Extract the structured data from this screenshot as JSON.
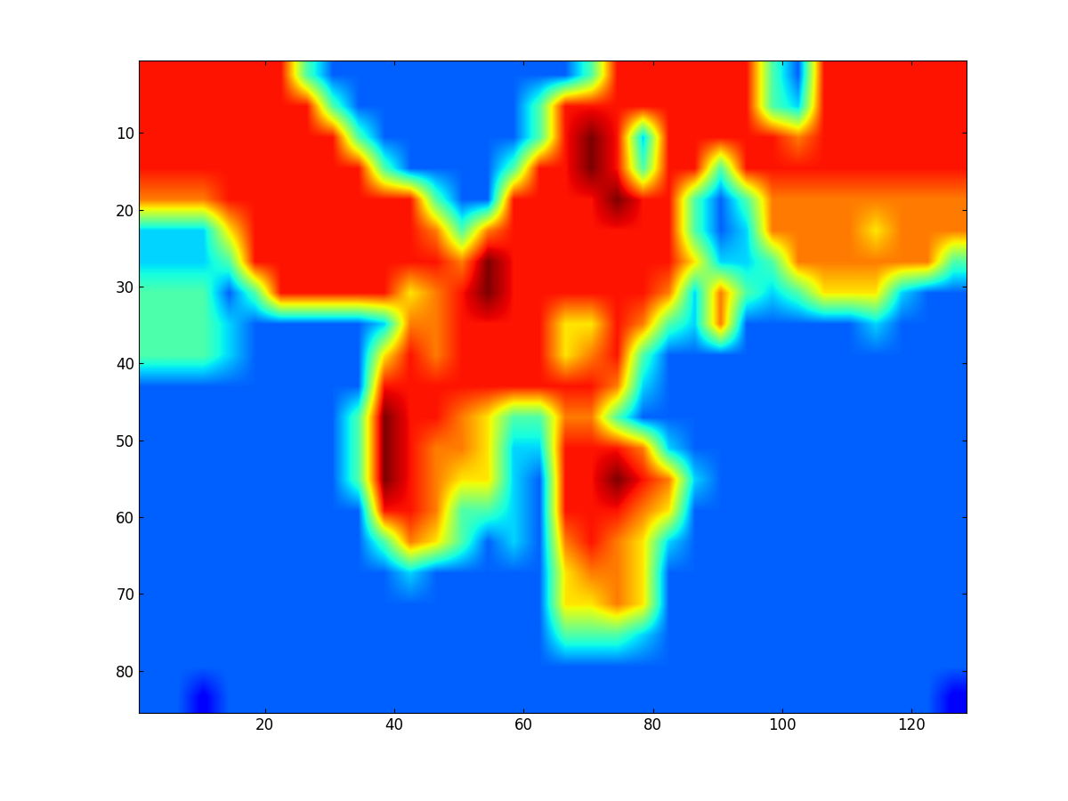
{
  "chart_data": {
    "type": "heatmap",
    "xlim": [
      0.5,
      128.5
    ],
    "ylim": [
      85.5,
      0.5
    ],
    "xticks": [
      20,
      40,
      60,
      80,
      100,
      120
    ],
    "yticks": [
      10,
      20,
      30,
      40,
      50,
      60,
      70,
      80
    ],
    "zlim": [
      0,
      9
    ],
    "cells": [
      [
        8,
        8,
        8,
        8,
        8,
        8,
        4,
        2,
        2,
        2,
        2,
        2,
        2,
        2,
        2,
        2,
        2,
        4,
        8,
        8,
        8,
        8,
        8,
        8,
        4,
        2,
        8,
        8,
        8,
        8,
        8,
        8
      ],
      [
        8,
        8,
        8,
        8,
        8,
        8,
        8,
        4,
        2,
        2,
        2,
        2,
        2,
        2,
        2,
        4,
        8,
        8,
        8,
        8,
        8,
        8,
        8,
        8,
        4,
        3,
        8,
        8,
        8,
        8,
        8,
        8
      ],
      [
        8,
        8,
        8,
        8,
        8,
        8,
        8,
        8,
        4,
        2,
        2,
        2,
        2,
        2,
        2,
        4,
        8,
        9,
        8,
        3,
        8,
        8,
        8,
        8,
        8,
        7,
        8,
        8,
        8,
        8,
        8,
        8
      ],
      [
        8,
        8,
        8,
        8,
        8,
        8,
        8,
        8,
        8,
        4,
        2,
        2,
        2,
        2,
        4,
        8,
        8,
        9,
        8,
        4,
        8,
        8,
        4,
        8,
        8,
        8,
        8,
        8,
        8,
        8,
        8,
        8
      ],
      [
        7,
        7,
        7,
        8,
        8,
        8,
        8,
        8,
        8,
        8,
        8,
        4,
        2,
        2,
        8,
        8,
        8,
        8,
        9,
        8,
        8,
        4,
        2,
        4,
        7,
        7,
        7,
        7,
        7,
        7,
        7,
        7
      ],
      [
        3,
        3,
        3,
        6,
        8,
        8,
        8,
        8,
        8,
        8,
        8,
        7,
        4,
        7,
        8,
        8,
        8,
        8,
        8,
        8,
        8,
        4,
        2,
        3,
        7,
        7,
        7,
        7,
        6,
        7,
        7,
        7
      ],
      [
        3,
        3,
        3,
        4,
        8,
        8,
        8,
        8,
        8,
        8,
        8,
        8,
        7,
        9,
        8,
        8,
        8,
        8,
        8,
        8,
        8,
        6,
        3,
        3,
        4,
        7,
        7,
        7,
        7,
        7,
        7,
        4
      ],
      [
        4,
        4,
        4,
        2,
        4,
        8,
        8,
        8,
        8,
        8,
        6,
        7,
        8,
        9,
        8,
        8,
        8,
        8,
        8,
        8,
        7,
        3,
        7,
        4,
        3,
        4,
        6,
        6,
        6,
        3,
        2,
        2
      ],
      [
        4,
        4,
        4,
        3,
        2,
        2,
        2,
        2,
        2,
        3,
        7,
        7,
        8,
        8,
        8,
        8,
        6,
        6,
        8,
        7,
        4,
        3,
        7,
        2,
        2,
        2,
        2,
        2,
        3,
        2,
        2,
        2
      ],
      [
        4,
        4,
        4,
        3,
        2,
        2,
        2,
        2,
        2,
        6,
        8,
        7,
        8,
        8,
        8,
        8,
        6,
        7,
        8,
        4,
        2,
        2,
        2,
        2,
        2,
        2,
        2,
        2,
        2,
        2,
        2,
        2
      ],
      [
        2,
        2,
        2,
        2,
        2,
        2,
        2,
        2,
        2,
        8,
        8,
        8,
        8,
        8,
        8,
        8,
        8,
        8,
        7,
        3,
        2,
        2,
        2,
        2,
        2,
        2,
        2,
        2,
        2,
        2,
        2,
        2
      ],
      [
        2,
        2,
        2,
        2,
        2,
        2,
        2,
        2,
        4,
        9,
        8,
        8,
        7,
        6,
        4,
        4,
        7,
        7,
        4,
        2,
        2,
        2,
        2,
        2,
        2,
        2,
        2,
        2,
        2,
        2,
        2,
        2
      ],
      [
        2,
        2,
        2,
        2,
        2,
        2,
        2,
        2,
        4,
        9,
        8,
        7,
        7,
        6,
        3,
        3,
        8,
        8,
        8,
        7,
        3,
        2,
        2,
        2,
        2,
        2,
        2,
        2,
        2,
        2,
        2,
        2
      ],
      [
        2,
        2,
        2,
        2,
        2,
        2,
        2,
        2,
        4,
        9,
        8,
        7,
        6,
        6,
        3,
        2,
        8,
        8,
        9,
        8,
        7,
        3,
        2,
        2,
        2,
        2,
        2,
        2,
        2,
        2,
        2,
        2
      ],
      [
        2,
        2,
        2,
        2,
        2,
        2,
        2,
        2,
        2,
        8,
        8,
        7,
        4,
        4,
        3,
        2,
        8,
        8,
        8,
        7,
        6,
        2,
        2,
        2,
        2,
        2,
        2,
        2,
        2,
        2,
        2,
        2
      ],
      [
        2,
        2,
        2,
        2,
        2,
        2,
        2,
        2,
        2,
        4,
        7,
        6,
        4,
        2,
        3,
        2,
        7,
        8,
        7,
        6,
        3,
        2,
        2,
        2,
        2,
        2,
        2,
        2,
        2,
        2,
        2,
        2
      ],
      [
        2,
        2,
        2,
        2,
        2,
        2,
        2,
        2,
        2,
        2,
        3,
        2,
        2,
        2,
        2,
        2,
        6,
        7,
        7,
        6,
        2,
        2,
        2,
        2,
        2,
        2,
        2,
        2,
        2,
        2,
        2,
        2
      ],
      [
        2,
        2,
        2,
        2,
        2,
        2,
        2,
        2,
        2,
        2,
        2,
        2,
        2,
        2,
        2,
        2,
        6,
        6,
        7,
        6,
        2,
        2,
        2,
        2,
        2,
        2,
        2,
        2,
        2,
        2,
        2,
        2
      ],
      [
        2,
        2,
        2,
        2,
        2,
        2,
        2,
        2,
        2,
        2,
        2,
        2,
        2,
        2,
        2,
        2,
        4,
        4,
        4,
        3,
        2,
        2,
        2,
        2,
        2,
        2,
        2,
        2,
        2,
        2,
        2,
        2
      ],
      [
        2,
        2,
        2,
        2,
        2,
        2,
        2,
        2,
        2,
        2,
        2,
        2,
        2,
        2,
        2,
        2,
        2,
        2,
        2,
        2,
        2,
        2,
        2,
        2,
        2,
        2,
        2,
        2,
        2,
        2,
        2,
        2
      ],
      [
        2,
        2,
        1,
        2,
        2,
        2,
        2,
        2,
        2,
        2,
        2,
        2,
        2,
        2,
        2,
        2,
        2,
        2,
        2,
        2,
        2,
        2,
        2,
        2,
        2,
        2,
        2,
        2,
        2,
        2,
        2,
        1
      ]
    ]
  }
}
